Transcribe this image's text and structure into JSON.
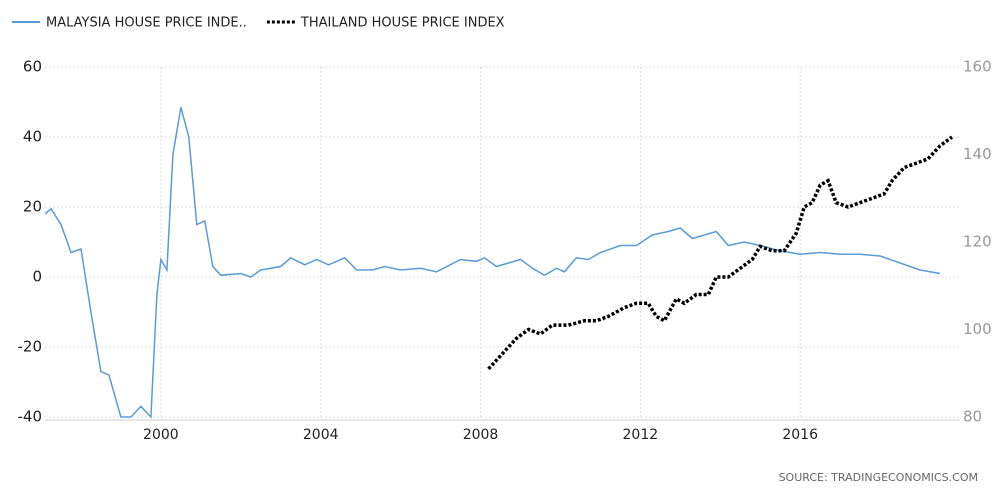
{
  "chart_data": {
    "type": "line",
    "xlim": [
      1997.1,
      2020
    ],
    "xticks": [
      2000,
      2004,
      2008,
      2012,
      2016
    ],
    "ylim": [
      -40,
      60
    ],
    "yticks": [
      -40,
      -20,
      0,
      20,
      40,
      60
    ],
    "y2lim": [
      80,
      160
    ],
    "y2ticks": [
      80,
      100,
      120,
      140,
      160
    ],
    "grid": true,
    "legend": "top-left",
    "source": "SOURCE: TRADINGECONOMICS.COM",
    "series": [
      {
        "name": "MALAYSIA HOUSE PRICE INDE..",
        "color": "#5b9bd5",
        "style": "solid",
        "x": [
          1997.1,
          1997.25,
          1997.5,
          1997.75,
          1998.0,
          1998.25,
          1998.5,
          1998.7,
          1999.0,
          1999.25,
          1999.5,
          1999.75,
          1999.9,
          2000.0,
          2000.15,
          2000.3,
          2000.5,
          2000.7,
          2000.9,
          2001.1,
          2001.3,
          2001.5,
          2002.0,
          2002.25,
          2002.5,
          2003.0,
          2003.25,
          2003.6,
          2003.9,
          2004.2,
          2004.6,
          2004.9,
          2005.3,
          2005.6,
          2006.0,
          2006.5,
          2006.9,
          2007.5,
          2007.9,
          2008.1,
          2008.4,
          2008.7,
          2009.0,
          2009.3,
          2009.6,
          2009.9,
          2010.1,
          2010.4,
          2010.7,
          2011.0,
          2011.5,
          2011.9,
          2012.3,
          2012.7,
          2013.0,
          2013.3,
          2013.6,
          2013.9,
          2014.2,
          2014.6,
          2015.0,
          2015.5,
          2016.0,
          2016.5,
          2017.0,
          2017.5,
          2018.0,
          2018.5,
          2019.0,
          2019.5
        ],
        "values": [
          18,
          19.5,
          15,
          7,
          8,
          -10,
          -27,
          -28,
          -40,
          -40,
          -37,
          -40,
          -5,
          5,
          2,
          35,
          48.5,
          40,
          15,
          16,
          3,
          0.5,
          1,
          0,
          2,
          3,
          5.5,
          3.5,
          5,
          3.5,
          5.5,
          2,
          2,
          3,
          2,
          2.5,
          1.5,
          5,
          4.5,
          5.5,
          3,
          4,
          5,
          2.5,
          0.5,
          2.5,
          1.5,
          5.5,
          5,
          7,
          9,
          9,
          12,
          13,
          14,
          11,
          12,
          13,
          9,
          10,
          9,
          7.5,
          6.5,
          7,
          6.5,
          6.5,
          6,
          4,
          2,
          1
        ]
      },
      {
        "name": "THAILAND HOUSE PRICE INDEX",
        "color": "#000000",
        "style": "dotted",
        "axis": "y2",
        "x": [
          2008.2,
          2008.5,
          2008.9,
          2009.2,
          2009.5,
          2009.8,
          2010.2,
          2010.6,
          2010.9,
          2011.2,
          2011.6,
          2011.9,
          2012.2,
          2012.4,
          2012.6,
          2012.9,
          2013.1,
          2013.4,
          2013.7,
          2013.9,
          2014.2,
          2014.5,
          2014.8,
          2015.0,
          2015.3,
          2015.6,
          2015.9,
          2016.1,
          2016.3,
          2016.5,
          2016.7,
          2016.9,
          2017.2,
          2017.5,
          2017.8,
          2018.1,
          2018.3,
          2018.6,
          2018.9,
          2019.2,
          2019.5,
          2019.8
        ],
        "values": [
          91,
          94,
          98,
          100,
          99,
          101,
          101,
          102,
          102,
          103,
          105,
          106,
          106,
          103,
          102,
          107,
          106,
          108,
          108,
          112,
          112,
          114,
          116,
          119,
          118,
          118,
          122,
          128,
          129,
          133,
          134,
          129,
          128,
          129,
          130,
          131,
          134,
          137,
          138,
          139,
          142,
          144
        ]
      }
    ]
  }
}
